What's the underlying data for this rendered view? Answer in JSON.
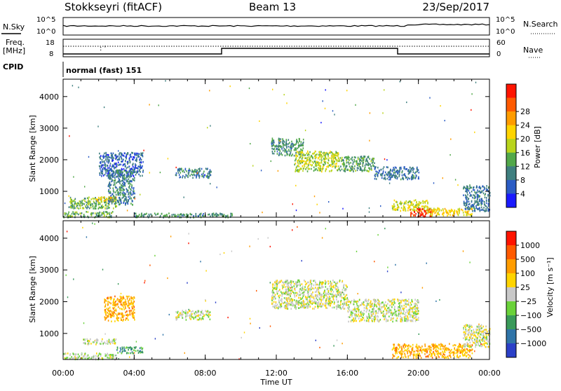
{
  "header": {
    "station": "Stokkseyri (fitACF)",
    "beam": "Beam 13",
    "date": "23/Sep/2017"
  },
  "top_panels": {
    "nsky_label": "N.Sky",
    "nsearch_label": "N.Search",
    "sky_ticks": [
      "10^5",
      "10^0"
    ],
    "freq_label_line1": "Freq.",
    "freq_label_line2": "[MHz]",
    "freq_ticks": [
      "18",
      "8"
    ],
    "nave_label": "Nave",
    "nave_ticks": [
      "60",
      "0"
    ],
    "cpid_label": "CPID",
    "cpid_text": "normal (fast) 151"
  },
  "chart_data": [
    {
      "type": "heatmap",
      "title": "",
      "quantity": "Power",
      "xlabel": "Time UT",
      "ylabel": "Slant Range [km]",
      "xlim_hours": [
        0,
        24
      ],
      "x_ticks": [
        "00:00",
        "04:00",
        "08:00",
        "12:00",
        "16:00",
        "20:00",
        "00:00"
      ],
      "ylim": [
        180,
        4550
      ],
      "y_ticks": [
        1000,
        2000,
        3000,
        4000
      ],
      "colorbar": {
        "label": "Power [dB]",
        "ticks": [
          "4",
          "8",
          "12",
          "16",
          "20",
          "24",
          "28"
        ],
        "colors": [
          "#1a1aff",
          "#2b5cc4",
          "#3f7f7f",
          "#52a84a",
          "#b8d41c",
          "#ffd400",
          "#ff9c00",
          "#ff5a00",
          "#ff1400"
        ]
      },
      "regions": [
        {
          "t0": 0.0,
          "t1": 2.8,
          "r0": 200,
          "r1": 380,
          "level": 0.35
        },
        {
          "t0": 0.3,
          "t1": 3.0,
          "r0": 480,
          "r1": 850,
          "level": 0.4
        },
        {
          "t0": 1.8,
          "t1": 3.0,
          "r0": 700,
          "r1": 850,
          "level": 0.65
        },
        {
          "t0": 2.0,
          "t1": 4.5,
          "r0": 1500,
          "r1": 2250,
          "level": 0.15
        },
        {
          "t0": 2.5,
          "t1": 4.0,
          "r0": 600,
          "r1": 1700,
          "level": 0.25
        },
        {
          "t0": 4.0,
          "t1": 9.5,
          "r0": 200,
          "r1": 330,
          "level": 0.3
        },
        {
          "t0": 6.3,
          "t1": 8.3,
          "r0": 1450,
          "r1": 1750,
          "level": 0.25
        },
        {
          "t0": 11.7,
          "t1": 13.5,
          "r0": 2150,
          "r1": 2700,
          "level": 0.3
        },
        {
          "t0": 13.0,
          "t1": 15.5,
          "r0": 1650,
          "r1": 2300,
          "level": 0.5
        },
        {
          "t0": 15.5,
          "t1": 17.5,
          "r0": 1650,
          "r1": 2150,
          "level": 0.35
        },
        {
          "t0": 17.5,
          "t1": 20.0,
          "r0": 1400,
          "r1": 1800,
          "level": 0.2
        },
        {
          "t0": 18.5,
          "t1": 20.5,
          "r0": 400,
          "r1": 750,
          "level": 0.55
        },
        {
          "t0": 19.5,
          "t1": 20.8,
          "r0": 220,
          "r1": 480,
          "level": 0.95
        },
        {
          "t0": 20.5,
          "t1": 23.0,
          "r0": 250,
          "r1": 500,
          "level": 0.6
        },
        {
          "t0": 22.5,
          "t1": 24.0,
          "r0": 400,
          "r1": 1200,
          "level": 0.2
        }
      ]
    },
    {
      "type": "heatmap",
      "title": "",
      "quantity": "Velocity",
      "xlabel": "Time UT",
      "ylabel": "Slant Range [km]",
      "xlim_hours": [
        0,
        24
      ],
      "x_ticks": [
        "00:00",
        "04:00",
        "08:00",
        "12:00",
        "16:00",
        "20:00",
        "00:00"
      ],
      "ylim": [
        180,
        4550
      ],
      "y_ticks": [
        1000,
        2000,
        3000,
        4000
      ],
      "colorbar": {
        "label": "Velocity [m s⁻¹]",
        "ticks": [
          "1000",
          "500",
          "100",
          "25",
          "−25",
          "−100",
          "−500",
          "−1000"
        ],
        "colors": [
          "#2b40c8",
          "#2f74a8",
          "#3a9a5a",
          "#6ad23a",
          "#c8c8c8",
          "#ffd400",
          "#ff9c00",
          "#ff5a00",
          "#ff1400"
        ]
      },
      "regions": [
        {
          "t0": 0.0,
          "t1": 3.0,
          "r0": 200,
          "r1": 400,
          "level": 0.45
        },
        {
          "t0": 1.0,
          "t1": 3.0,
          "r0": 680,
          "r1": 850,
          "level": 0.5
        },
        {
          "t0": 2.3,
          "t1": 4.0,
          "r0": 1400,
          "r1": 2200,
          "level": 0.7
        },
        {
          "t0": 3.0,
          "t1": 4.5,
          "r0": 400,
          "r1": 600,
          "level": 0.25
        },
        {
          "t0": 6.3,
          "t1": 8.3,
          "r0": 1450,
          "r1": 1750,
          "level": 0.5
        },
        {
          "t0": 11.7,
          "t1": 16.0,
          "r0": 1800,
          "r1": 2700,
          "level": 0.5
        },
        {
          "t0": 16.0,
          "t1": 20.0,
          "r0": 1400,
          "r1": 2100,
          "level": 0.5
        },
        {
          "t0": 18.5,
          "t1": 23.0,
          "r0": 250,
          "r1": 700,
          "level": 0.7
        },
        {
          "t0": 22.5,
          "t1": 24.0,
          "r0": 600,
          "r1": 1300,
          "level": 0.5
        }
      ]
    }
  ]
}
